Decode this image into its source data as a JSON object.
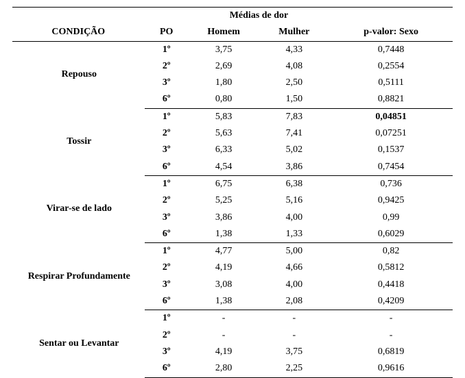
{
  "headers": {
    "condicao": "CONDIÇÃO",
    "po": "PO",
    "medias": "Médias de dor",
    "homem": "Homem",
    "mulher": "Mulher",
    "pvalor": "p-valor: Sexo"
  },
  "po_labels": [
    "1º",
    "2º",
    "3º",
    "6º"
  ],
  "groups": [
    {
      "name": "Repouso",
      "rows": [
        {
          "homem": "3,75",
          "mulher": "4,33",
          "p": "0,7448",
          "sig": false
        },
        {
          "homem": "2,69",
          "mulher": "4,08",
          "p": "0,2554",
          "sig": false
        },
        {
          "homem": "1,80",
          "mulher": "2,50",
          "p": "0,5111",
          "sig": false
        },
        {
          "homem": "0,80",
          "mulher": "1,50",
          "p": "0,8821",
          "sig": false
        }
      ]
    },
    {
      "name": "Tossir",
      "rows": [
        {
          "homem": "5,83",
          "mulher": "7,83",
          "p": "0,04851",
          "sig": true
        },
        {
          "homem": "5,63",
          "mulher": "7,41",
          "p": "0,07251",
          "sig": false
        },
        {
          "homem": "6,33",
          "mulher": "5,02",
          "p": "0,1537",
          "sig": false
        },
        {
          "homem": "4,54",
          "mulher": "3,86",
          "p": "0,7454",
          "sig": false
        }
      ]
    },
    {
      "name": "Virar-se de lado",
      "rows": [
        {
          "homem": "6,75",
          "mulher": "6,38",
          "p": "0,736",
          "sig": false
        },
        {
          "homem": "5,25",
          "mulher": "5,16",
          "p": "0,9425",
          "sig": false
        },
        {
          "homem": "3,86",
          "mulher": "4,00",
          "p": "0,99",
          "sig": false
        },
        {
          "homem": "1,38",
          "mulher": "1,33",
          "p": "0,6029",
          "sig": false
        }
      ]
    },
    {
      "name": "Respirar Profundamente",
      "rows": [
        {
          "homem": "4,77",
          "mulher": "5,00",
          "p": "0,82",
          "sig": false
        },
        {
          "homem": "4,19",
          "mulher": "4,66",
          "p": "0,5812",
          "sig": false
        },
        {
          "homem": "3,08",
          "mulher": "4,00",
          "p": "0,4418",
          "sig": false
        },
        {
          "homem": "1,38",
          "mulher": "2,08",
          "p": "0,4209",
          "sig": false
        }
      ]
    },
    {
      "name": "Sentar ou Levantar",
      "rows": [
        {
          "homem": "-",
          "mulher": "-",
          "p": "-",
          "sig": false
        },
        {
          "homem": "-",
          "mulher": "-",
          "p": "-",
          "sig": false
        },
        {
          "homem": "4,19",
          "mulher": "3,75",
          "p": "0,6819",
          "sig": false
        },
        {
          "homem": "2,80",
          "mulher": "2,25",
          "p": "0,9616",
          "sig": false
        }
      ]
    }
  ]
}
